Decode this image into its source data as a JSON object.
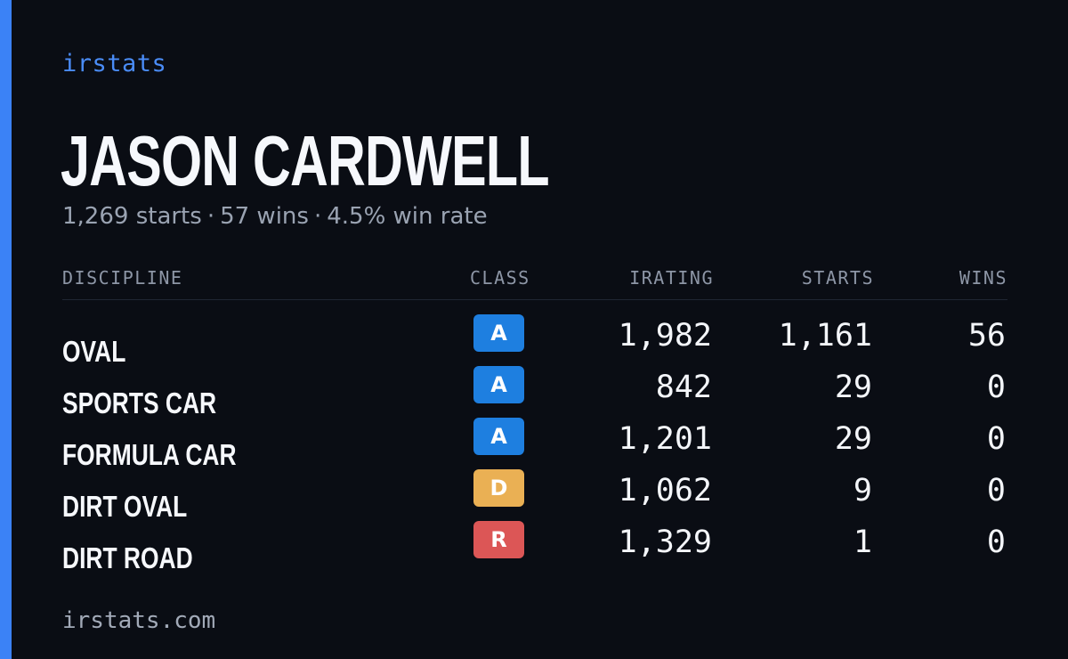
{
  "brand": "irstats",
  "player": {
    "name": "JASON CARDWELL"
  },
  "summary": {
    "starts": "1,269 starts",
    "wins": "57 wins",
    "win_rate": "4.5% win rate",
    "separator": "·"
  },
  "table": {
    "headers": {
      "discipline": "DISCIPLINE",
      "class": "CLASS",
      "irating": "IRATING",
      "starts": "STARTS",
      "wins": "WINS"
    },
    "rows": [
      {
        "discipline": "OVAL",
        "class": "A",
        "class_color": "#1e7fe0",
        "irating": "1,982",
        "starts": "1,161",
        "wins": "56"
      },
      {
        "discipline": "SPORTS CAR",
        "class": "A",
        "class_color": "#1e7fe0",
        "irating": "842",
        "starts": "29",
        "wins": "0"
      },
      {
        "discipline": "FORMULA CAR",
        "class": "A",
        "class_color": "#1e7fe0",
        "irating": "1,201",
        "starts": "29",
        "wins": "0"
      },
      {
        "discipline": "DIRT OVAL",
        "class": "D",
        "class_color": "#eab054",
        "irating": "1,062",
        "starts": "9",
        "wins": "0"
      },
      {
        "discipline": "DIRT ROAD",
        "class": "R",
        "class_color": "#dc5656",
        "irating": "1,329",
        "starts": "1",
        "wins": "0"
      }
    ]
  },
  "footer": {
    "url": "irstats.com"
  },
  "colors": {
    "accent": "#3b82f6",
    "background": "#0a0d14"
  }
}
